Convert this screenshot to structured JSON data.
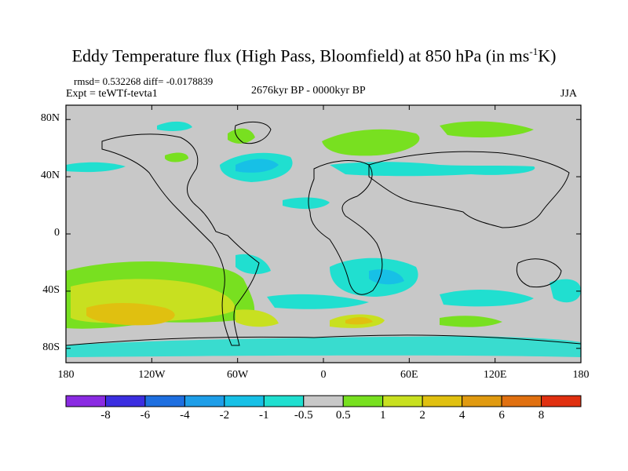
{
  "title_main": "Eddy Temperature flux (High Pass, Bloomfield) at 850 hPa (in ms",
  "title_sup": "-1",
  "title_end": "K)",
  "stats": "rmsd= 0.532268 diff= -0.0178839",
  "expt": "Expt = teWTf-tevta1",
  "period": "2676kyr BP - 0000kyr BP",
  "season": "JJA",
  "x_ticks": [
    "180",
    "120W",
    "60W",
    "0",
    "60E",
    "120E",
    "180"
  ],
  "y_ticks": [
    "80N",
    "40N",
    "0",
    "40S",
    "80S"
  ],
  "colorbar": {
    "labels": [
      "-8",
      "-6",
      "-4",
      "-2",
      "-1",
      "-0.5",
      "0.5",
      "1",
      "2",
      "4",
      "6",
      "8"
    ],
    "colors": [
      "#8a2be2",
      "#3b2ee0",
      "#1e6fe0",
      "#1e9ee8",
      "#17c0e6",
      "#20dfd0",
      "#c8c8c8",
      "#78e020",
      "#c8e020",
      "#e0c010",
      "#e09a10",
      "#e07010",
      "#e03010"
    ]
  },
  "map_colors": {
    "background": "#c8c8c8",
    "pos_light": "#78e020",
    "pos_mid": "#c8e020",
    "pos_high": "#e0c010",
    "pos_higher": "#e09a10",
    "neg_light": "#20dfd0",
    "neg_mid": "#17c0e6"
  }
}
